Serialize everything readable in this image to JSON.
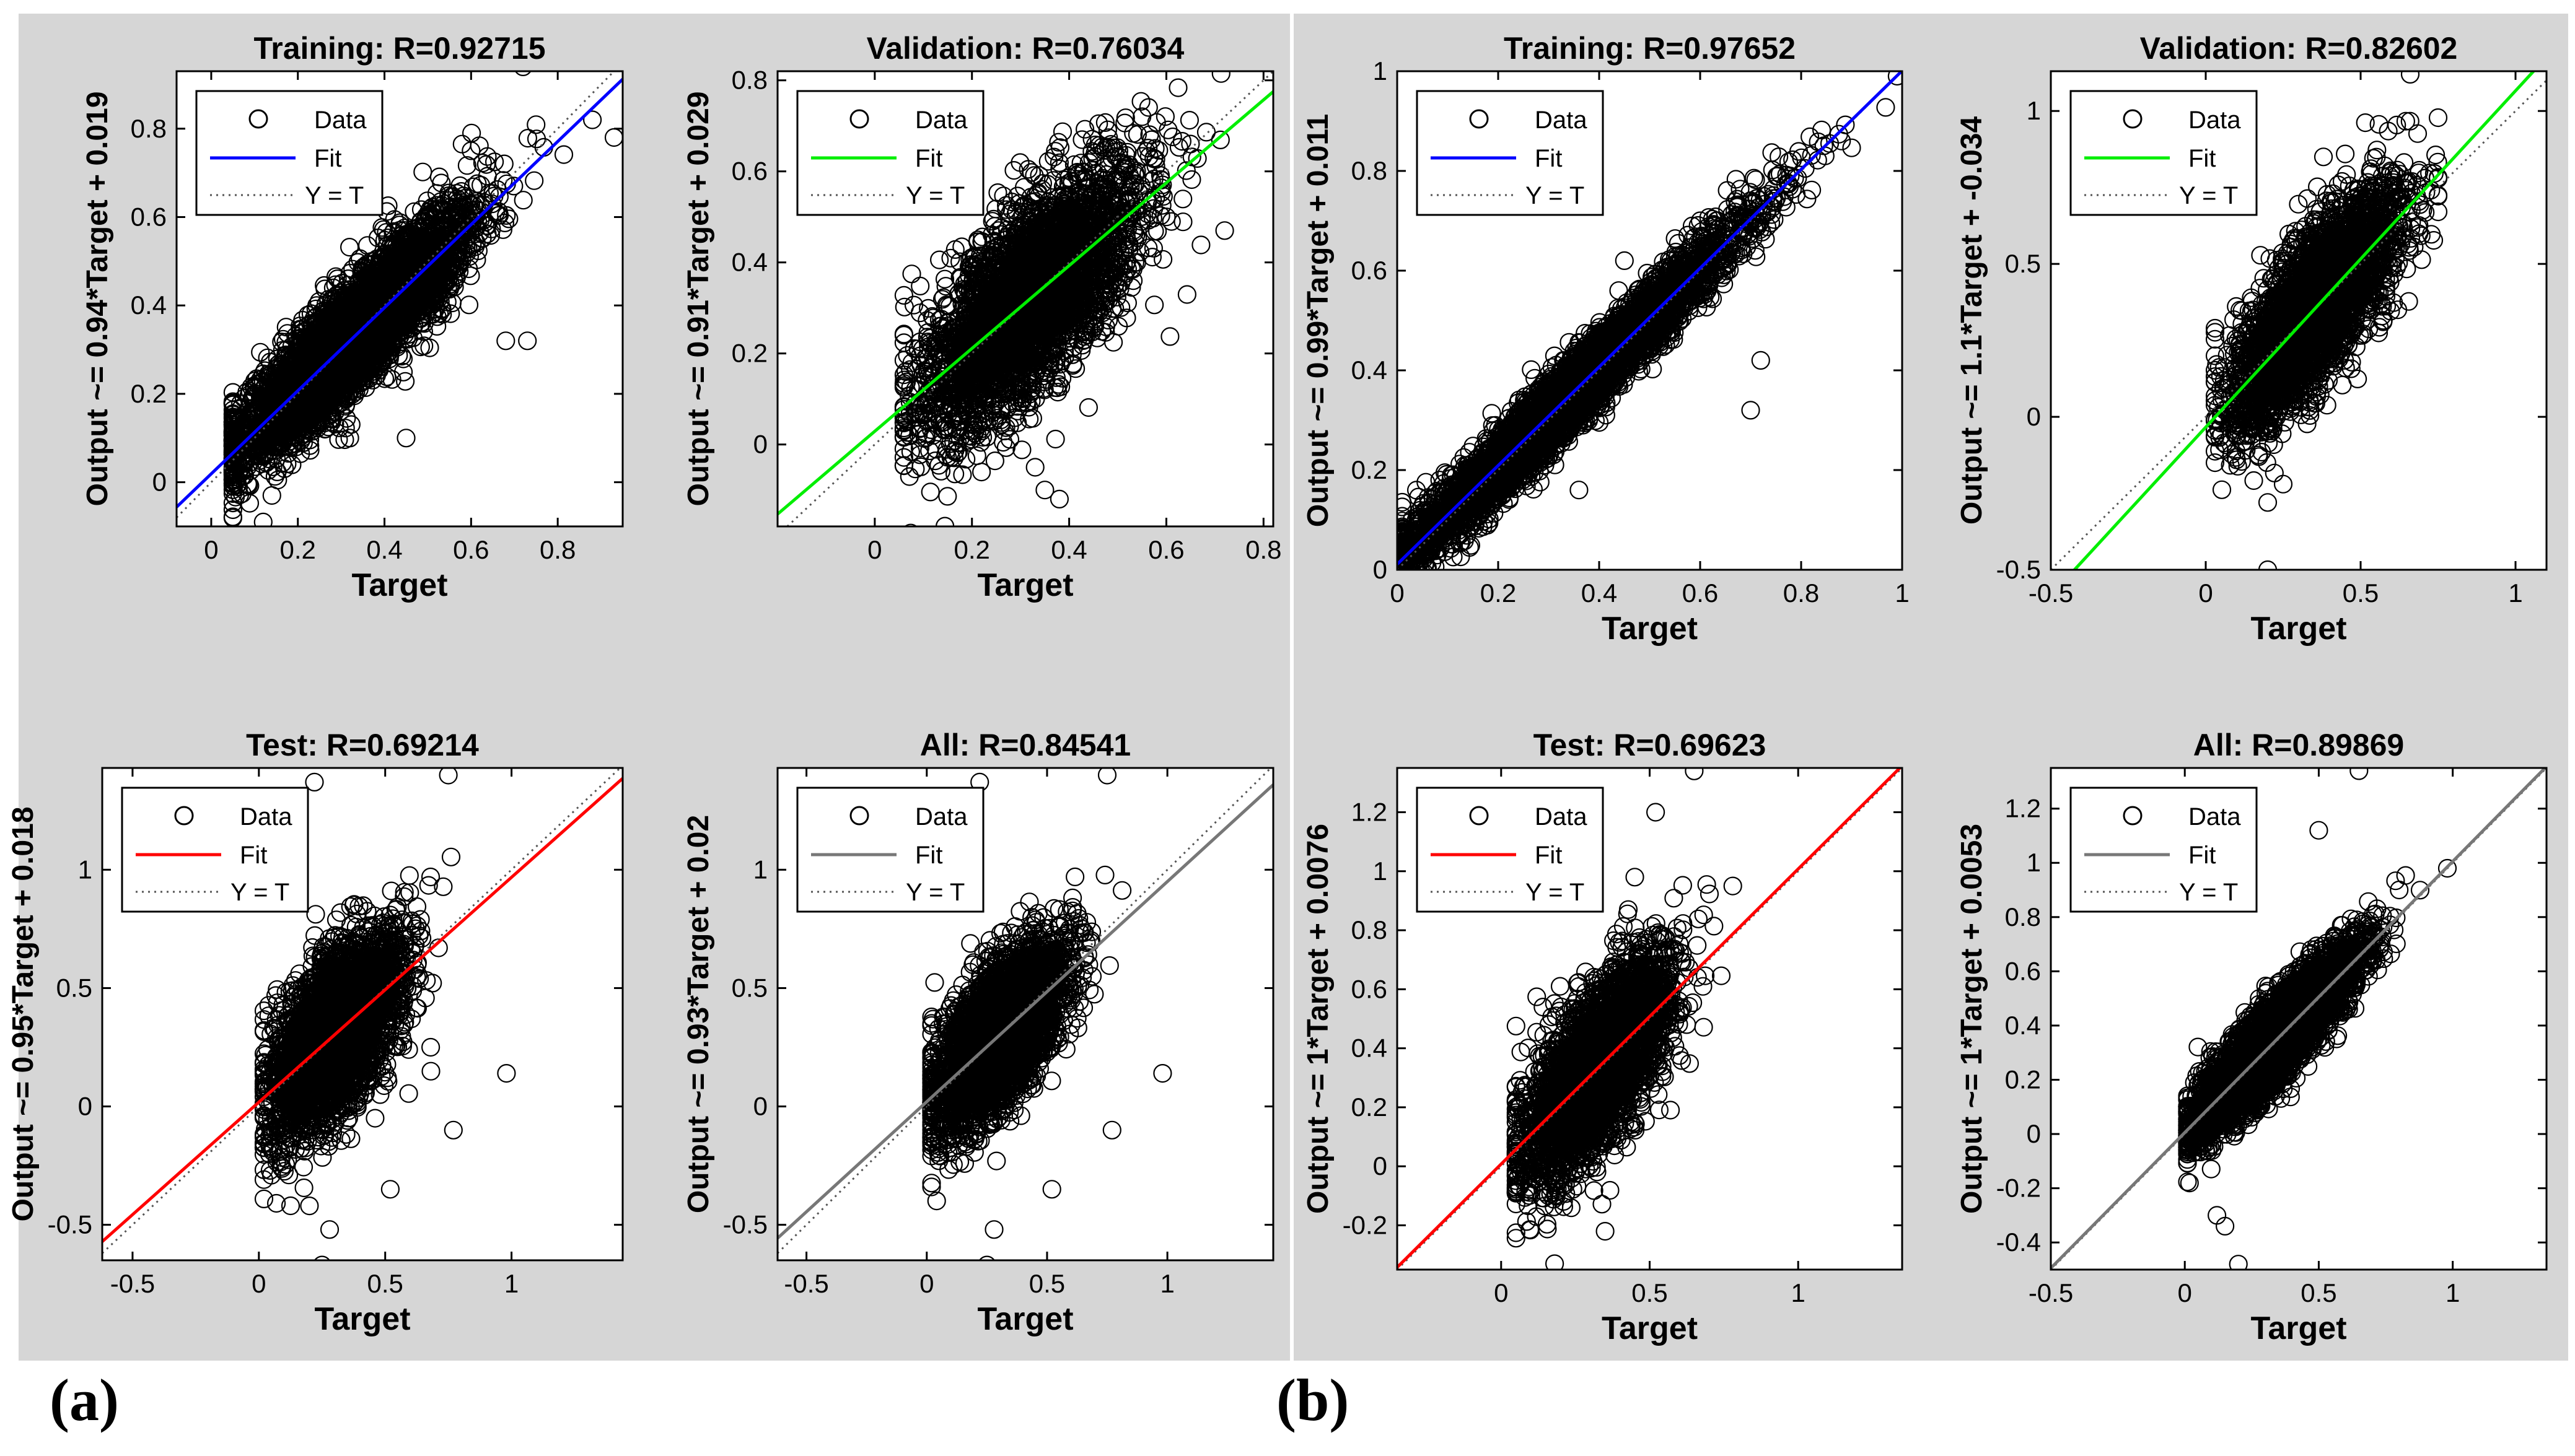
{
  "figure": {
    "panels": [
      {
        "label": "(a)"
      },
      {
        "label": "(b)"
      }
    ]
  },
  "chart_data": [
    {
      "type": "scatter",
      "panel": "(a)",
      "title": "Training: R=0.92715",
      "xlabel": "Target",
      "ylabel": "Output ~= 0.94*Target + 0.019",
      "xlim": [
        -0.08,
        0.95
      ],
      "ylim": [
        -0.1,
        0.93
      ],
      "xticks": [
        0,
        0.2,
        0.4,
        0.6,
        0.8
      ],
      "xtick_labels": [
        "0",
        "0.2",
        "0.4",
        "0.6",
        "0.8"
      ],
      "yticks": [
        0,
        0.2,
        0.4,
        0.6,
        0.8
      ],
      "ytick_labels": [
        "0",
        "0.2",
        "0.4",
        "0.6",
        "0.8"
      ],
      "fit": {
        "slope": 0.94,
        "intercept": 0.019,
        "color": "#0000ff"
      },
      "cloud": {
        "x_mean": 0.32,
        "x_sd": 0.13,
        "noise_sd": 0.06,
        "x_min": 0.05,
        "x_max": 0.92,
        "n": 5000
      },
      "outliers": [
        [
          0.12,
          -0.09
        ],
        [
          0.72,
          0.94
        ],
        [
          0.93,
          0.78
        ],
        [
          0.68,
          0.32
        ],
        [
          0.73,
          0.32
        ],
        [
          0.45,
          0.1
        ],
        [
          0.88,
          0.82
        ],
        [
          0.6,
          0.75
        ],
        [
          0.14,
          -0.03
        ],
        [
          0.32,
          0.1
        ]
      ],
      "legend": [
        "Data",
        "Fit",
        "Y = T"
      ]
    },
    {
      "type": "scatter",
      "panel": "(a)",
      "title": "Validation: R=0.76034",
      "xlabel": "Target",
      "ylabel": "Output ~= 0.91*Target + 0.029",
      "xlim": [
        -0.2,
        0.82
      ],
      "ylim": [
        -0.18,
        0.82
      ],
      "xticks": [
        0,
        0.2,
        0.4,
        0.6,
        0.8
      ],
      "xtick_labels": [
        "0",
        "0.2",
        "0.4",
        "0.6",
        "0.8"
      ],
      "yticks": [
        0,
        0.2,
        0.4,
        0.6,
        0.8
      ],
      "ytick_labels": [
        "0",
        "0.2",
        "0.4",
        "0.6",
        "0.8"
      ],
      "fit": {
        "slope": 0.91,
        "intercept": 0.029,
        "color": "#00ee00"
      },
      "cloud": {
        "x_mean": 0.32,
        "x_sd": 0.11,
        "noise_sd": 0.1,
        "x_min": 0.06,
        "x_max": 0.75,
        "n": 3400
      },
      "outliers": [
        [
          0.25,
          -0.2
        ],
        [
          0.38,
          -0.12
        ],
        [
          0.35,
          -0.1
        ],
        [
          0.72,
          0.47
        ],
        [
          0.55,
          0.72
        ],
        [
          0.6,
          0.5
        ],
        [
          0.33,
          -0.05
        ],
        [
          0.12,
          0.02
        ]
      ],
      "legend": [
        "Data",
        "Fit",
        "Y = T"
      ]
    },
    {
      "type": "scatter",
      "panel": "(a)",
      "title": "Test: R=0.69214",
      "xlabel": "Target",
      "ylabel": "Output ~= 0.95*Target + 0.018",
      "xlim": [
        -0.62,
        1.44
      ],
      "ylim": [
        -0.65,
        1.43
      ],
      "xticks": [
        -0.5,
        0,
        0.5,
        1
      ],
      "xtick_labels": [
        "-0.5",
        "0",
        "0.5",
        "1"
      ],
      "yticks": [
        -0.5,
        0,
        0.5,
        1
      ],
      "ytick_labels": [
        "-0.5",
        "0",
        "0.5",
        "1"
      ],
      "fit": {
        "slope": 0.95,
        "intercept": 0.018,
        "color": "#ff0000"
      },
      "cloud": {
        "x_mean": 0.3,
        "x_sd": 0.13,
        "noise_sd": 0.16,
        "x_min": 0.02,
        "x_max": 0.85,
        "n": 3400
      },
      "outliers": [
        [
          0.25,
          -0.67
        ],
        [
          0.28,
          -0.52
        ],
        [
          0.2,
          -0.42
        ],
        [
          0.75,
          1.4
        ],
        [
          0.22,
          1.37
        ],
        [
          0.98,
          0.14
        ],
        [
          0.77,
          -0.1
        ],
        [
          0.52,
          -0.35
        ],
        [
          0.68,
          0.25
        ]
      ],
      "legend": [
        "Data",
        "Fit",
        "Y = T"
      ]
    },
    {
      "type": "scatter",
      "panel": "(a)",
      "title": "All: R=0.84541",
      "xlabel": "Target",
      "ylabel": "Output ~= 0.93*Target + 0.02",
      "xlim": [
        -0.62,
        1.44
      ],
      "ylim": [
        -0.65,
        1.43
      ],
      "xticks": [
        -0.5,
        0,
        0.5,
        1
      ],
      "xtick_labels": [
        "-0.5",
        "0",
        "0.5",
        "1"
      ],
      "yticks": [
        -0.5,
        0,
        0.5,
        1
      ],
      "ytick_labels": [
        "-0.5",
        "0",
        "0.5",
        "1"
      ],
      "fit": {
        "slope": 0.93,
        "intercept": 0.02,
        "color": "#777777"
      },
      "cloud": {
        "x_mean": 0.3,
        "x_sd": 0.13,
        "noise_sd": 0.14,
        "x_min": 0.02,
        "x_max": 0.85,
        "n": 3800
      },
      "outliers": [
        [
          0.25,
          -0.67
        ],
        [
          0.28,
          -0.52
        ],
        [
          0.75,
          1.4
        ],
        [
          0.22,
          1.37
        ],
        [
          0.98,
          0.14
        ],
        [
          0.77,
          -0.1
        ],
        [
          0.52,
          -0.35
        ]
      ],
      "legend": [
        "Data",
        "Fit",
        "Y = T"
      ]
    },
    {
      "type": "scatter",
      "panel": "(b)",
      "title": "Training: R=0.97652",
      "xlabel": "Target",
      "ylabel": "Output ~= 0.99*Target + 0.011",
      "xlim": [
        0,
        1
      ],
      "ylim": [
        0,
        1
      ],
      "xticks": [
        0,
        0.2,
        0.4,
        0.6,
        0.8,
        1
      ],
      "xtick_labels": [
        "0",
        "0.2",
        "0.4",
        "0.6",
        "0.8",
        "1"
      ],
      "yticks": [
        0,
        0.2,
        0.4,
        0.6,
        0.8,
        1
      ],
      "ytick_labels": [
        "0",
        "0.2",
        "0.4",
        "0.6",
        "0.8",
        "1"
      ],
      "fit": {
        "slope": 0.99,
        "intercept": 0.011,
        "color": "#0000ff"
      },
      "cloud": {
        "x_mean": 0.33,
        "x_sd": 0.17,
        "noise_sd": 0.035,
        "x_min": 0.01,
        "x_max": 0.98,
        "n": 5000
      },
      "outliers": [
        [
          0.99,
          0.99
        ],
        [
          0.72,
          0.42
        ],
        [
          0.7,
          0.32
        ],
        [
          0.36,
          0.16
        ],
        [
          0.88,
          0.86
        ],
        [
          0.6,
          0.7
        ],
        [
          0.45,
          0.62
        ]
      ],
      "legend": [
        "Data",
        "Fit",
        "Y = T"
      ]
    },
    {
      "type": "scatter",
      "panel": "(b)",
      "title": "Validation: R=0.82602",
      "xlabel": "Target",
      "ylabel": "Output ~= 1.1*Target + -0.034",
      "xlim": [
        -0.5,
        1.1
      ],
      "ylim": [
        -0.5,
        1.13
      ],
      "xticks": [
        -0.5,
        0,
        0.5,
        1
      ],
      "xtick_labels": [
        "-0.5",
        "0",
        "0.5",
        "1"
      ],
      "yticks": [
        -0.5,
        0,
        0.5,
        1
      ],
      "ytick_labels": [
        "-0.5",
        "0",
        "0.5",
        "1"
      ],
      "fit": {
        "slope": 1.1,
        "intercept": -0.034,
        "color": "#00ee00"
      },
      "cloud": {
        "x_mean": 0.35,
        "x_sd": 0.13,
        "noise_sd": 0.12,
        "x_min": 0.03,
        "x_max": 0.75,
        "n": 3400
      },
      "outliers": [
        [
          0.2,
          -0.5
        ],
        [
          0.66,
          1.12
        ],
        [
          0.38,
          0.85
        ],
        [
          0.62,
          0.35
        ],
        [
          0.2,
          -0.28
        ],
        [
          0.25,
          -0.22
        ]
      ],
      "legend": [
        "Data",
        "Fit",
        "Y = T"
      ]
    },
    {
      "type": "scatter",
      "panel": "(b)",
      "title": "Test: R=0.69623",
      "xlabel": "Target",
      "ylabel": "Output ~= 1*Target + 0.0076",
      "xlim": [
        -0.35,
        1.35
      ],
      "ylim": [
        -0.35,
        1.35
      ],
      "xticks": [
        0,
        0.5,
        1
      ],
      "xtick_labels": [
        "0",
        "0.5",
        "1"
      ],
      "yticks": [
        -0.2,
        0,
        0.2,
        0.4,
        0.6,
        0.8,
        1,
        1.2
      ],
      "ytick_labels": [
        "-0.2",
        "0",
        "0.2",
        "0.4",
        "0.6",
        "0.8",
        "1",
        "1.2"
      ],
      "fit": {
        "slope": 1.0,
        "intercept": 0.0076,
        "color": "#ff0000"
      },
      "cloud": {
        "x_mean": 0.32,
        "x_sd": 0.12,
        "noise_sd": 0.13,
        "x_min": 0.05,
        "x_max": 0.85,
        "n": 3400
      },
      "outliers": [
        [
          0.65,
          1.34
        ],
        [
          0.18,
          -0.33
        ],
        [
          0.52,
          1.2
        ],
        [
          0.45,
          0.98
        ],
        [
          0.78,
          0.95
        ],
        [
          0.35,
          -0.22
        ]
      ],
      "legend": [
        "Data",
        "Fit",
        "Y = T"
      ]
    },
    {
      "type": "scatter",
      "panel": "(b)",
      "title": "All: R=0.89869",
      "xlabel": "Target",
      "ylabel": "Output ~= 1*Target + 0.0053",
      "xlim": [
        -0.5,
        1.35
      ],
      "ylim": [
        -0.5,
        1.35
      ],
      "xticks": [
        -0.5,
        0,
        0.5,
        1
      ],
      "xtick_labels": [
        "-0.5",
        "0",
        "0.5",
        "1"
      ],
      "yticks": [
        -0.4,
        -0.2,
        0,
        0.2,
        0.4,
        0.6,
        0.8,
        1,
        1.2
      ],
      "ytick_labels": [
        "-0.4",
        "-0.2",
        "0",
        "0.2",
        "0.4",
        "0.6",
        "0.8",
        "1",
        "1.2"
      ],
      "fit": {
        "slope": 1.0,
        "intercept": 0.0053,
        "color": "#777777"
      },
      "cloud": {
        "x_mean": 0.33,
        "x_sd": 0.15,
        "noise_sd": 0.07,
        "x_min": 0.01,
        "x_max": 0.95,
        "n": 5000
      },
      "outliers": [
        [
          0.2,
          -0.48
        ],
        [
          0.65,
          1.34
        ],
        [
          0.5,
          1.12
        ],
        [
          0.98,
          0.98
        ],
        [
          0.12,
          -0.3
        ],
        [
          0.15,
          -0.34
        ],
        [
          0.8,
          0.9
        ]
      ],
      "legend": [
        "Data",
        "Fit",
        "Y = T"
      ]
    }
  ]
}
